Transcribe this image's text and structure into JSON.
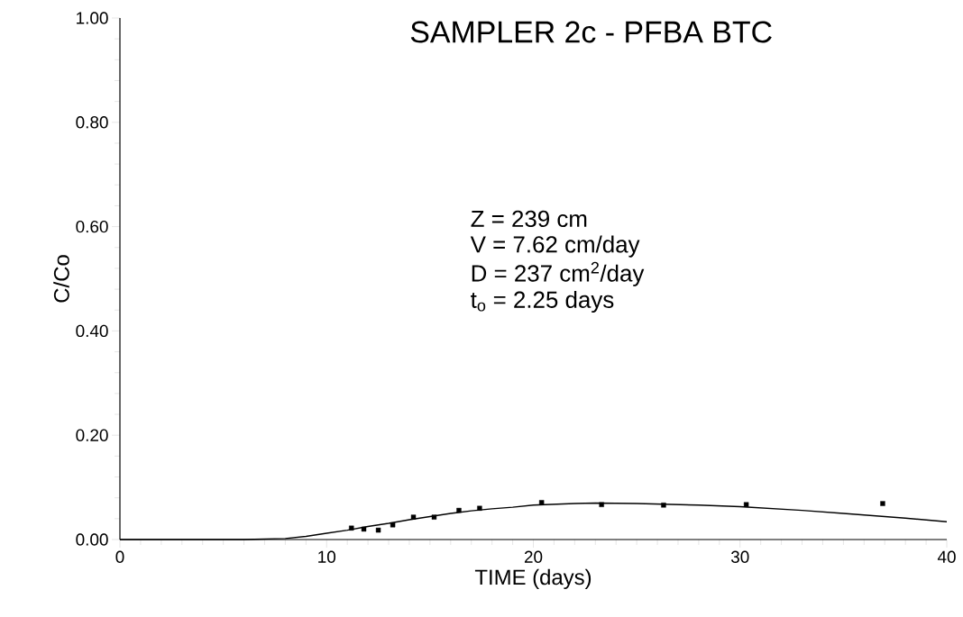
{
  "chart_data": {
    "type": "scatter",
    "title": "SAMPLER 2c - PFBA BTC",
    "xlabel": "TIME (days)",
    "ylabel": "C/Co",
    "annotations": [
      "Z = 239 cm",
      "V = 7.62 cm/day",
      "D = 237 cm$^{2}$/day",
      "t$_{o}$ = 2.25 days"
    ],
    "xlim": [
      0,
      40
    ],
    "xticks": [
      0,
      10,
      20,
      30,
      40
    ],
    "ylim": [
      0,
      1
    ],
    "yticks": [
      {
        "value": 0,
        "label": "0.00"
      },
      {
        "value": 0.2,
        "label": "0.20"
      },
      {
        "value": 0.4,
        "label": "0.40"
      },
      {
        "value": 0.6,
        "label": "0.60"
      },
      {
        "value": 0.8,
        "label": "0.80"
      },
      {
        "value": 1,
        "label": "1.00"
      }
    ],
    "series": [
      {
        "color": "#000000",
        "marker": "square",
        "x": [
          11.2,
          11.8,
          12.5,
          13.2,
          14.2,
          15.2,
          16.4,
          17.4,
          20.4,
          23.3,
          26.3,
          30.3,
          36.9
        ],
        "values": [
          0.022,
          0.02,
          0.018,
          0.028,
          0.043,
          0.043,
          0.056,
          0.06,
          0.071,
          0.067,
          0.066,
          0.067,
          0.069
        ]
      },
      {
        "type": "line",
        "color": "#000000",
        "marker": "none",
        "line_style": "solid",
        "x": [
          0,
          4,
          6,
          8,
          9,
          10,
          11,
          12,
          13,
          14,
          15,
          16,
          17,
          18,
          19,
          20,
          22,
          23,
          25,
          28,
          30,
          33,
          35,
          38,
          40
        ],
        "values": [
          0,
          0,
          0,
          0.002,
          0.006,
          0.012,
          0.018,
          0.025,
          0.031,
          0.038,
          0.044,
          0.05,
          0.055,
          0.059,
          0.062,
          0.066,
          0.069,
          0.07,
          0.069,
          0.066,
          0.063,
          0.056,
          0.05,
          0.041,
          0.034
        ]
      }
    ]
  }
}
